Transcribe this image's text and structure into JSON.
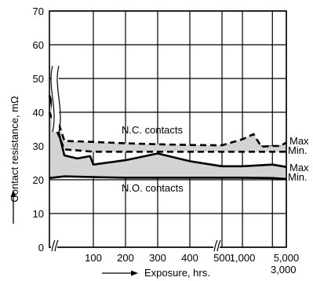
{
  "chart_data": {
    "type": "line",
    "title": "",
    "xlabel": "Exposure, hrs.",
    "ylabel": "Contact resistance, mΩ",
    "ylim": [
      0,
      70
    ],
    "yticks": [
      "0",
      "10",
      "20",
      "30",
      "40",
      "50",
      "60",
      "70"
    ],
    "xticks": [
      "100",
      "200",
      "300",
      "400",
      "500",
      "1,000",
      "3,000",
      "5,000"
    ],
    "grid": true,
    "x_scale": "broken: linear 0–500, then compressed 500–5,000",
    "colors": {
      "band_fill": "#d3d3d3",
      "line": "#000000"
    },
    "series": [
      {
        "name": "N.C. contacts Max",
        "style": "dashed",
        "x": [
          0,
          10,
          100,
          200,
          300,
          400,
          500,
          600,
          1000,
          1500,
          2000,
          3000,
          4000,
          5000
        ],
        "y": [
          45,
          31.5,
          31.2,
          30.8,
          30.5,
          30.3,
          30.2,
          30.8,
          32,
          33.5,
          29.8,
          30,
          30,
          31
        ]
      },
      {
        "name": "N.C. contacts Min.",
        "style": "dashed",
        "x": [
          0,
          10,
          100,
          200,
          300,
          400,
          500,
          1000,
          3000,
          5000
        ],
        "y": [
          40,
          29,
          28.3,
          28.3,
          28.3,
          28.3,
          28.3,
          28.3,
          28.3,
          28.3
        ]
      },
      {
        "name": "N.O. contacts Max",
        "style": "solid",
        "x": [
          0,
          10,
          50,
          90,
          100,
          200,
          300,
          400,
          500,
          1000,
          3000,
          5000
        ],
        "y": [
          45,
          27.2,
          26.3,
          27,
          24.5,
          25.8,
          27.8,
          25.5,
          24,
          24,
          24.5,
          23.8
        ]
      },
      {
        "name": "N.O. contacts Min.",
        "style": "solid",
        "x": [
          0,
          10,
          100,
          200,
          300,
          400,
          500,
          1000,
          3000,
          5000
        ],
        "y": [
          20.5,
          21,
          20.8,
          20.6,
          20.6,
          20.6,
          20.6,
          20.6,
          20.5,
          20.2
        ]
      }
    ],
    "annotations": {
      "nc_label": "N.C. contacts",
      "no_label": "N.O. contacts",
      "nc_max": "Max",
      "nc_min": "Min.",
      "no_max": "Max",
      "no_min": "Min."
    }
  }
}
